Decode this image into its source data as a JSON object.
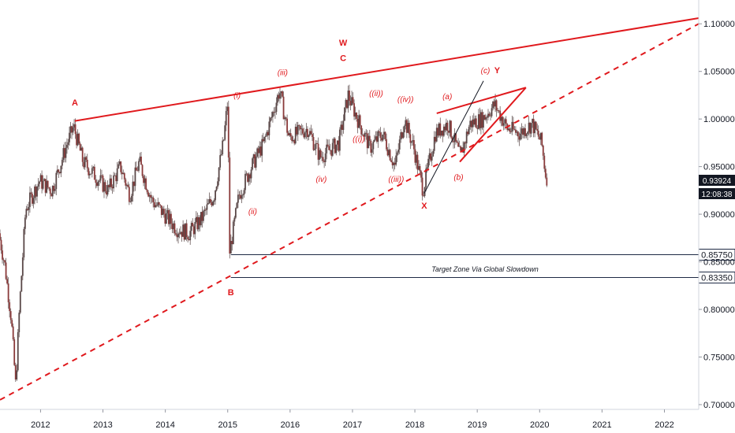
{
  "colors": {
    "accent": "#e0191d",
    "candle": "#4a3a3a",
    "zone": "#1e2a44",
    "tag_bg": "#131722"
  },
  "chart_data": {
    "type": "candlestick",
    "xlim": [
      2011.35,
      2022.55
    ],
    "ylim": [
      0.695,
      1.125
    ],
    "x_ticks": [
      {
        "label": "2012",
        "value": 2012
      },
      {
        "label": "2013",
        "value": 2013
      },
      {
        "label": "2014",
        "value": 2014
      },
      {
        "label": "2015",
        "value": 2015
      },
      {
        "label": "2016",
        "value": 2016
      },
      {
        "label": "2017",
        "value": 2017
      },
      {
        "label": "2018",
        "value": 2018
      },
      {
        "label": "2019",
        "value": 2019
      },
      {
        "label": "2020",
        "value": 2020
      },
      {
        "label": "2021",
        "value": 2021
      },
      {
        "label": "2022",
        "value": 2022
      }
    ],
    "y_ticks": [
      {
        "label": "0.70000",
        "value": 0.7
      },
      {
        "label": "0.75000",
        "value": 0.75
      },
      {
        "label": "0.80000",
        "value": 0.8
      },
      {
        "label": "0.85000",
        "value": 0.85
      },
      {
        "label": "0.90000",
        "value": 0.9
      },
      {
        "label": "0.95000",
        "value": 0.95
      },
      {
        "label": "1.00000",
        "value": 1.0
      },
      {
        "label": "1.05000",
        "value": 1.05
      },
      {
        "label": "1.10000",
        "value": 1.1
      }
    ],
    "price_path": [
      [
        2011.35,
        0.88
      ],
      [
        2011.45,
        0.845
      ],
      [
        2011.55,
        0.79
      ],
      [
        2011.62,
        0.72
      ],
      [
        2011.68,
        0.8
      ],
      [
        2011.78,
        0.905
      ],
      [
        2012.0,
        0.935
      ],
      [
        2012.2,
        0.925
      ],
      [
        2012.45,
        0.975
      ],
      [
        2012.55,
        0.992
      ],
      [
        2012.7,
        0.955
      ],
      [
        2012.9,
        0.94
      ],
      [
        2013.1,
        0.925
      ],
      [
        2013.3,
        0.95
      ],
      [
        2013.45,
        0.92
      ],
      [
        2013.6,
        0.955
      ],
      [
        2013.8,
        0.915
      ],
      [
        2014.0,
        0.9
      ],
      [
        2014.2,
        0.885
      ],
      [
        2014.4,
        0.88
      ],
      [
        2014.6,
        0.895
      ],
      [
        2014.8,
        0.92
      ],
      [
        2014.95,
        0.975
      ],
      [
        2015.02,
        1.02
      ],
      [
        2015.05,
        0.86
      ],
      [
        2015.2,
        0.92
      ],
      [
        2015.4,
        0.95
      ],
      [
        2015.6,
        0.975
      ],
      [
        2015.85,
        1.03
      ],
      [
        2016.0,
        0.98
      ],
      [
        2016.3,
        0.99
      ],
      [
        2016.5,
        0.96
      ],
      [
        2016.8,
        0.975
      ],
      [
        2016.95,
        1.025
      ],
      [
        2017.1,
        1.0
      ],
      [
        2017.3,
        0.97
      ],
      [
        2017.5,
        0.985
      ],
      [
        2017.7,
        0.95
      ],
      [
        2017.85,
        1.0
      ],
      [
        2018.0,
        0.97
      ],
      [
        2018.15,
        0.925
      ],
      [
        2018.35,
        0.985
      ],
      [
        2018.55,
        0.995
      ],
      [
        2018.75,
        0.96
      ],
      [
        2018.9,
        0.995
      ],
      [
        2019.1,
        1.0
      ],
      [
        2019.3,
        1.015
      ],
      [
        2019.5,
        0.99
      ],
      [
        2019.7,
        0.985
      ],
      [
        2019.9,
        0.995
      ],
      [
        2020.05,
        0.975
      ],
      [
        2020.12,
        0.939
      ]
    ],
    "last_price": "0.93924",
    "countdown": "12:08:38",
    "levels": [
      {
        "label": "0.85750",
        "value": 0.8575
      },
      {
        "label": "0.83350",
        "value": 0.8335
      }
    ],
    "zone_label": "Target Zone Via Global Slowdown",
    "trendlines": [
      {
        "name": "upper-trendline",
        "style": "solid",
        "from": [
          2012.55,
          0.998
        ],
        "to": [
          2022.55,
          1.106
        ]
      },
      {
        "name": "lower-trendline",
        "style": "dashed",
        "from": [
          2011.35,
          0.705
        ],
        "to": [
          2022.55,
          1.1
        ]
      },
      {
        "name": "triangle-top",
        "style": "solid",
        "from": [
          2018.35,
          1.006
        ],
        "to": [
          2019.78,
          1.033
        ]
      },
      {
        "name": "triangle-bottom",
        "style": "solid",
        "from": [
          2018.72,
          0.955
        ],
        "to": [
          2019.78,
          1.033
        ]
      }
    ],
    "wave_lines": [
      {
        "name": "x-to-c-line",
        "from": [
          2018.15,
          0.922
        ],
        "to": [
          2019.1,
          1.04
        ]
      }
    ],
    "wave_labels": [
      {
        "text": "A",
        "x": 2012.55,
        "y": 1.014,
        "big": true
      },
      {
        "text": "B",
        "x": 2015.05,
        "y": 0.815,
        "big": true
      },
      {
        "text": "W",
        "x": 2016.85,
        "y": 1.077,
        "big": true
      },
      {
        "text": "C",
        "x": 2016.85,
        "y": 1.061,
        "big": true
      },
      {
        "text": "X",
        "x": 2018.15,
        "y": 0.906,
        "big": true
      },
      {
        "text": "Y",
        "x": 2019.32,
        "y": 1.048,
        "big": true
      },
      {
        "text": "(i)",
        "x": 2015.15,
        "y": 1.022,
        "big": false
      },
      {
        "text": "(ii)",
        "x": 2015.4,
        "y": 0.9,
        "big": false
      },
      {
        "text": "(iii)",
        "x": 2015.88,
        "y": 1.046,
        "big": false
      },
      {
        "text": "(iv)",
        "x": 2016.5,
        "y": 0.934,
        "big": false
      },
      {
        "text": "((i))",
        "x": 2017.1,
        "y": 0.976,
        "big": false
      },
      {
        "text": "((ii))",
        "x": 2017.38,
        "y": 1.024,
        "big": false
      },
      {
        "text": "((iii))",
        "x": 2017.7,
        "y": 0.934,
        "big": false
      },
      {
        "text": "((iv))",
        "x": 2017.85,
        "y": 1.018,
        "big": false
      },
      {
        "text": "(a)",
        "x": 2018.52,
        "y": 1.021,
        "big": false
      },
      {
        "text": "(b)",
        "x": 2018.7,
        "y": 0.936,
        "big": false
      },
      {
        "text": "(c)",
        "x": 2019.13,
        "y": 1.048,
        "big": false
      }
    ]
  }
}
